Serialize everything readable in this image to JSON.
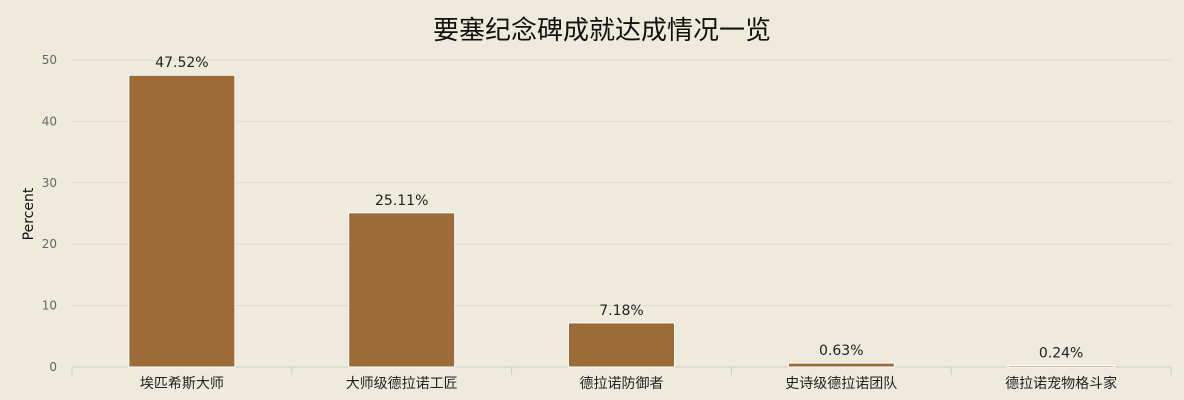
{
  "chart_data": {
    "type": "bar",
    "title": "要塞纪念碑成就达成情况一览",
    "xlabel": "",
    "ylabel": "Percent",
    "ylim": [
      0,
      50
    ],
    "yticks": [
      0,
      10,
      20,
      30,
      40,
      50
    ],
    "grid": true,
    "categories": [
      "埃匹希斯大师",
      "大师级德拉诺工匠",
      "德拉诺防御者",
      "史诗级德拉诺团队",
      "德拉诺宠物格斗家"
    ],
    "values": [
      47.52,
      25.11,
      7.18,
      0.63,
      0.24
    ],
    "data_labels": [
      "47.52%",
      "25.11%",
      "7.18%",
      "0.63%",
      "0.24%"
    ],
    "colors": {
      "bar": "#9c6b37",
      "background": "#eeebdd",
      "grid": "#dddbcc"
    }
  }
}
